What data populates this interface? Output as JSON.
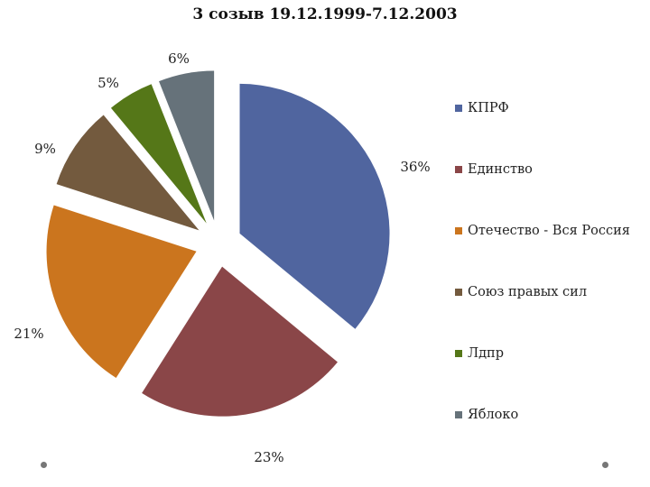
{
  "chart_data": {
    "type": "pie",
    "title": "3 созыв 19.12.1999-7.12.2003",
    "slices": [
      {
        "name": "КПРФ",
        "value": 36,
        "label": "36%",
        "color": "#50659f"
      },
      {
        "name": "Единство",
        "value": 23,
        "label": "23%",
        "color": "#8a4648"
      },
      {
        "name": "Отечество - Вся Россия",
        "value": 21,
        "label": "21%",
        "color": "#cb751e"
      },
      {
        "name": "Союз правых сил",
        "value": 9,
        "label": "9%",
        "color": "#735a3e"
      },
      {
        "name": "Лдпр",
        "value": 5,
        "label": "5%",
        "color": "#557718"
      },
      {
        "name": "Яблоко",
        "value": 6,
        "label": "6%",
        "color": "#66727a"
      }
    ],
    "legend_position": "right",
    "exploded": true
  }
}
